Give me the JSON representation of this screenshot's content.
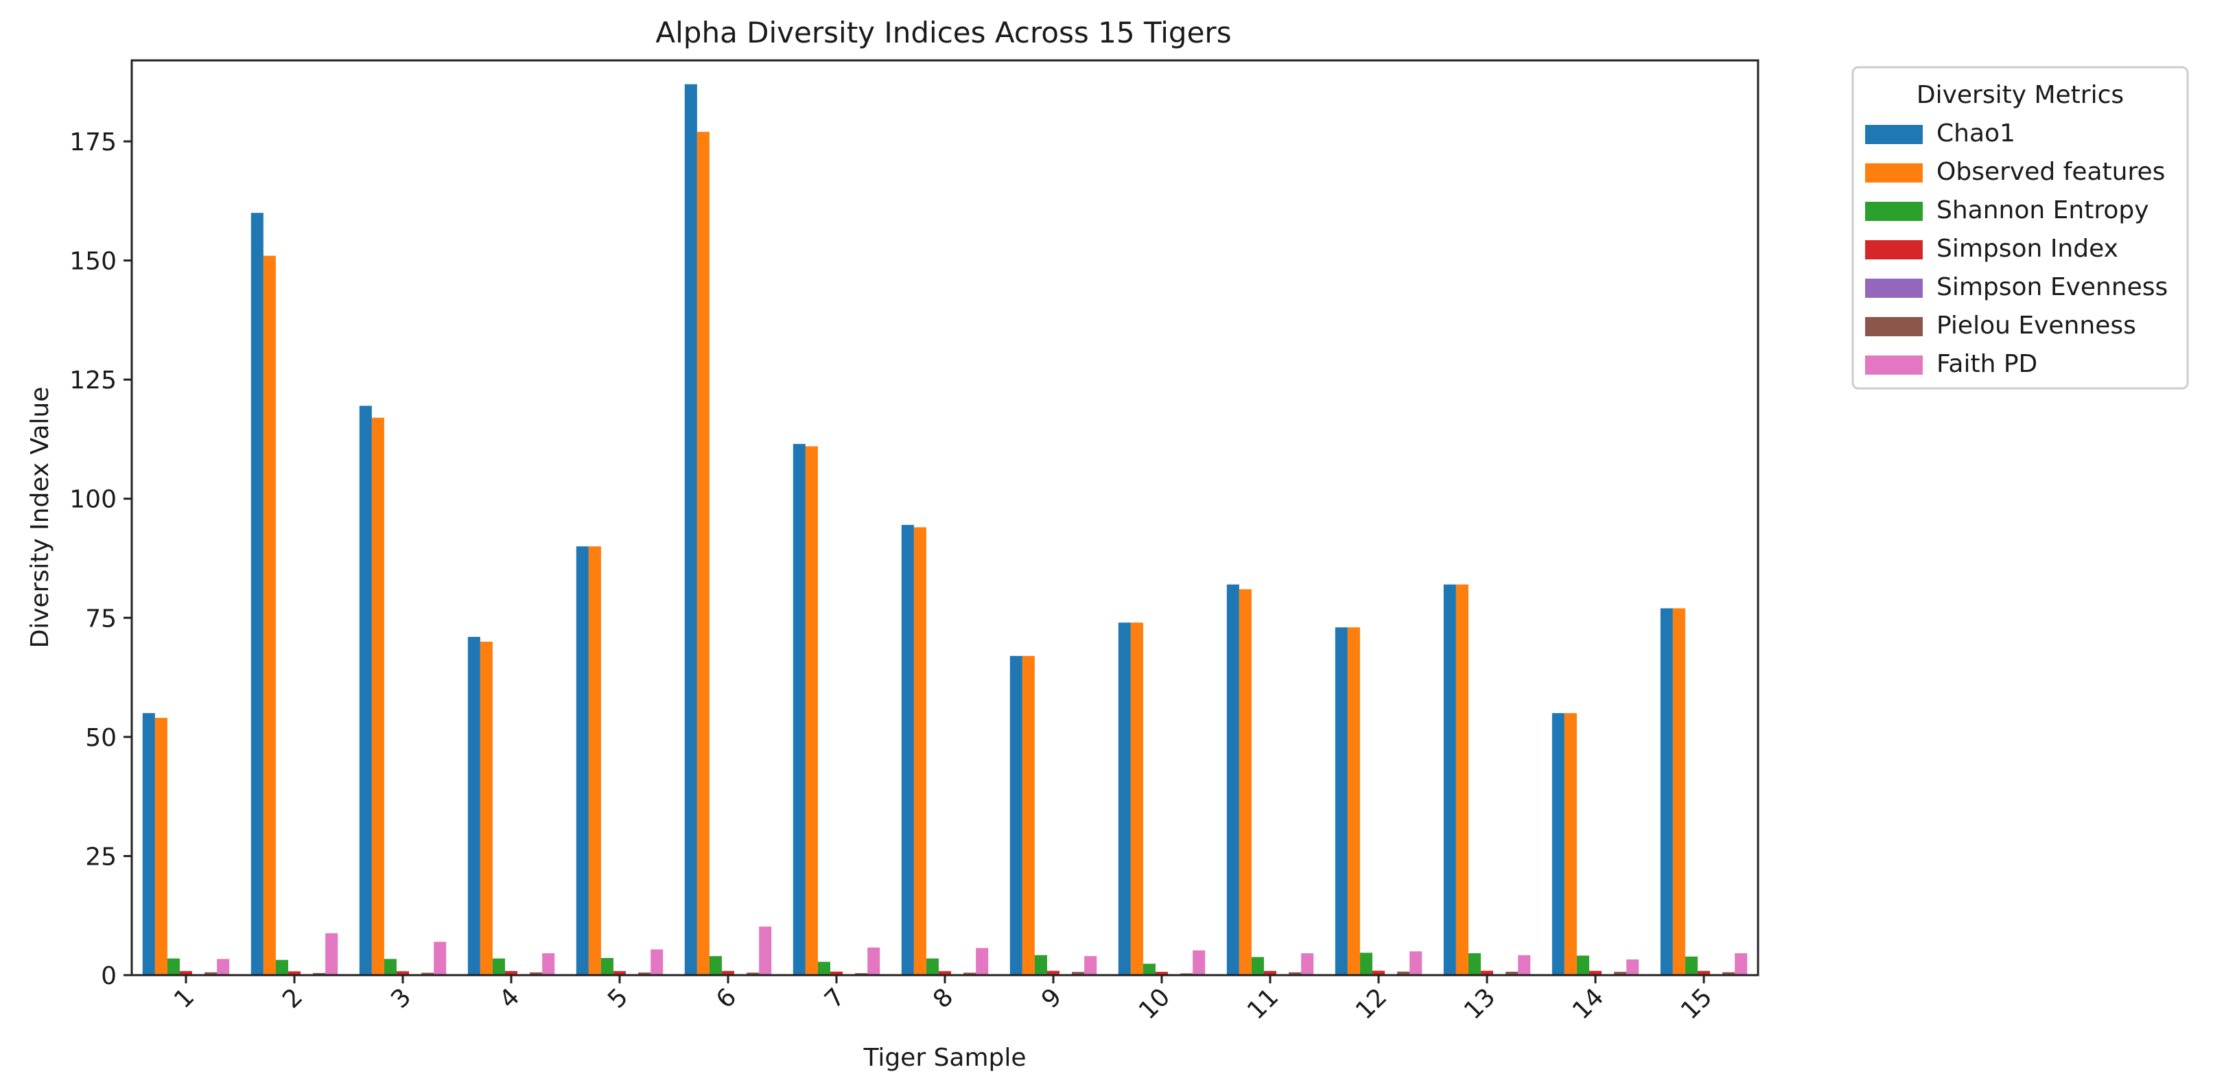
{
  "chart_data": {
    "type": "bar",
    "title": "Alpha Diversity Indices Across 15 Tigers",
    "xlabel": "Tiger Sample",
    "ylabel": "Diversity Index Value",
    "ylim": [
      0,
      192
    ],
    "yticks": [
      0,
      25,
      50,
      75,
      100,
      125,
      150,
      175
    ],
    "grid": false,
    "legend_title": "Diversity Metrics",
    "legend_position": "outside upper right",
    "categories": [
      "1",
      "2",
      "3",
      "4",
      "5",
      "6",
      "7",
      "8",
      "9",
      "10",
      "11",
      "12",
      "13",
      "14",
      "15"
    ],
    "series": [
      {
        "name": "Chao1",
        "color": "#1f77b4",
        "values": [
          55,
          160,
          119.5,
          71,
          90,
          187,
          111.5,
          94.5,
          67,
          74,
          82,
          73,
          82,
          55,
          77
        ]
      },
      {
        "name": "Observed features",
        "color": "#ff7f0e",
        "values": [
          54,
          151,
          117,
          70,
          90,
          177,
          111,
          94,
          67,
          74,
          81,
          73,
          82,
          55,
          77
        ]
      },
      {
        "name": "Shannon Entropy",
        "color": "#2ca02c",
        "values": [
          3.5,
          3.2,
          3.4,
          3.5,
          3.6,
          4.0,
          2.8,
          3.5,
          4.2,
          2.4,
          3.8,
          4.7,
          4.6,
          4.1,
          3.9
        ]
      },
      {
        "name": "Simpson Index",
        "color": "#d62728",
        "values": [
          0.85,
          0.8,
          0.82,
          0.86,
          0.85,
          0.88,
          0.75,
          0.84,
          0.9,
          0.7,
          0.88,
          0.93,
          0.92,
          0.9,
          0.88
        ]
      },
      {
        "name": "Simpson Evenness",
        "color": "#9467bd",
        "values": [
          0.12,
          0.05,
          0.06,
          0.1,
          0.08,
          0.05,
          0.05,
          0.07,
          0.12,
          0.06,
          0.09,
          0.1,
          0.1,
          0.12,
          0.1
        ]
      },
      {
        "name": "Pielou Evenness",
        "color": "#8c564b",
        "values": [
          0.6,
          0.45,
          0.5,
          0.58,
          0.55,
          0.53,
          0.42,
          0.52,
          0.68,
          0.38,
          0.6,
          0.75,
          0.72,
          0.7,
          0.62
        ]
      },
      {
        "name": "Faith PD",
        "color": "#e377c2",
        "values": [
          3.4,
          8.8,
          7.0,
          4.6,
          5.4,
          10.2,
          5.8,
          5.7,
          4.0,
          5.2,
          4.6,
          5.0,
          4.2,
          3.3,
          4.6
        ]
      }
    ]
  }
}
